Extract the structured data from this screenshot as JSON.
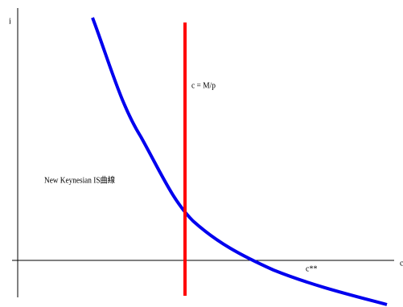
{
  "axes": {
    "y_label": "i",
    "x_label": "c"
  },
  "labels": {
    "money_line": "c = M/p",
    "is_curve": "New Keynesian IS曲線",
    "equilibrium": "c**"
  }
}
